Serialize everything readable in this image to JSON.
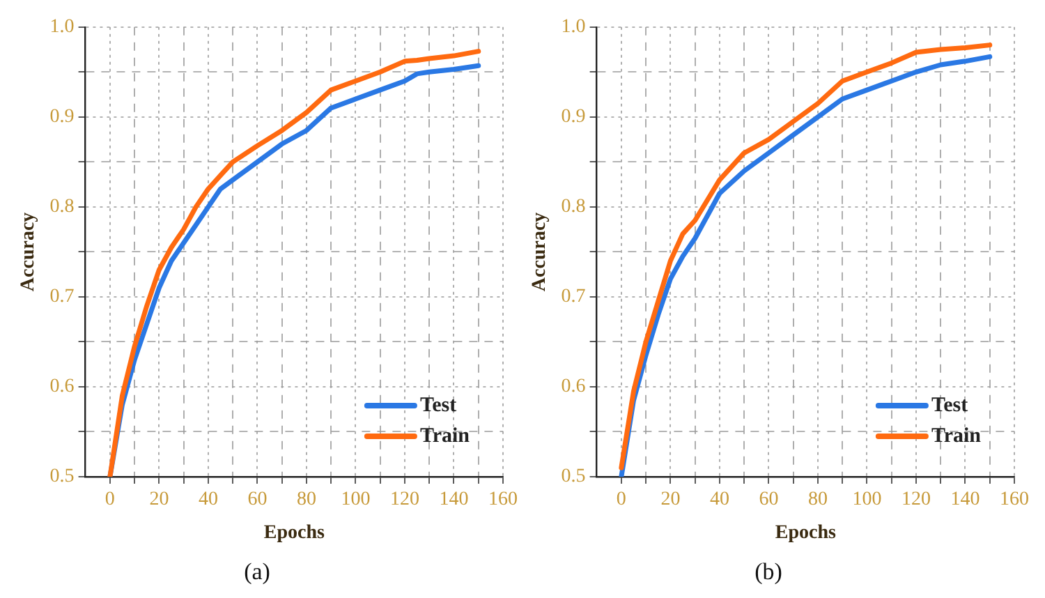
{
  "chart_data": [
    {
      "type": "line",
      "title": "(a)",
      "xlabel": "Epochs",
      "ylabel": "Accuracy",
      "legend": "bottom right",
      "grid": true,
      "marker": "none",
      "line_style": "solid",
      "xlim": [
        -10,
        160
      ],
      "xticks": [
        0,
        {
          "value": 10,
          "label": null
        },
        20,
        {
          "value": 30,
          "label": null
        },
        40,
        {
          "value": 50,
          "label": null
        },
        60,
        {
          "value": 70,
          "label": null
        },
        80,
        {
          "value": 90,
          "label": null
        },
        100,
        {
          "value": 110,
          "label": null
        },
        120,
        {
          "value": 130,
          "label": null
        },
        140,
        {
          "value": 150,
          "label": null
        },
        160
      ],
      "ylim": [
        0.5,
        1.0
      ],
      "yticks": [
        0.5,
        {
          "value": 0.55,
          "label": null
        },
        0.6,
        {
          "value": 0.65,
          "label": null
        },
        0.7,
        {
          "value": 0.75,
          "label": null
        },
        0.8,
        {
          "value": 0.85,
          "label": null
        },
        0.9,
        {
          "value": 0.95,
          "label": null
        },
        {
          "value": 1.0,
          "label": "1.0"
        }
      ],
      "x": [
        0,
        5,
        10,
        15,
        20,
        25,
        30,
        35,
        40,
        45,
        50,
        60,
        70,
        80,
        90,
        100,
        110,
        120,
        125,
        130,
        140,
        150
      ],
      "series": [
        {
          "name": "Test",
          "color": "#2a78e4",
          "values": [
            0.5,
            0.58,
            0.63,
            0.67,
            0.71,
            0.74,
            0.76,
            0.78,
            0.8,
            0.82,
            0.83,
            0.85,
            0.87,
            0.885,
            0.91,
            0.92,
            0.93,
            0.94,
            0.948,
            0.95,
            0.953,
            0.957
          ]
        },
        {
          "name": "Train",
          "color": "#ff6a10",
          "values": [
            0.5,
            0.59,
            0.645,
            0.69,
            0.73,
            0.755,
            0.775,
            0.8,
            0.82,
            0.835,
            0.85,
            0.868,
            0.885,
            0.905,
            0.93,
            0.94,
            0.95,
            0.962,
            0.963,
            0.965,
            0.968,
            0.973
          ]
        }
      ]
    },
    {
      "type": "line",
      "title": "(b)",
      "xlabel": "Epochs",
      "ylabel": "Accuracy",
      "legend": "bottom right",
      "grid": true,
      "marker": "none",
      "line_style": "solid",
      "xlim": [
        -10,
        160
      ],
      "xticks": [
        0,
        {
          "value": 10,
          "label": null
        },
        20,
        {
          "value": 30,
          "label": null
        },
        40,
        {
          "value": 50,
          "label": null
        },
        60,
        {
          "value": 70,
          "label": null
        },
        80,
        {
          "value": 90,
          "label": null
        },
        100,
        {
          "value": 110,
          "label": null
        },
        120,
        {
          "value": 130,
          "label": null
        },
        140,
        {
          "value": 150,
          "label": null
        },
        160
      ],
      "ylim": [
        0.5,
        1.0
      ],
      "yticks": [
        0.5,
        {
          "value": 0.55,
          "label": null
        },
        0.6,
        {
          "value": 0.65,
          "label": null
        },
        0.7,
        {
          "value": 0.75,
          "label": null
        },
        0.8,
        {
          "value": 0.85,
          "label": null
        },
        0.9,
        {
          "value": 0.95,
          "label": null
        },
        {
          "value": 1.0,
          "label": "1.0"
        }
      ],
      "x": [
        0,
        5,
        10,
        15,
        20,
        25,
        30,
        40,
        50,
        60,
        70,
        80,
        90,
        100,
        110,
        120,
        130,
        140,
        150
      ],
      "series": [
        {
          "name": "Test",
          "color": "#2a78e4",
          "values": [
            0.5,
            0.585,
            0.635,
            0.68,
            0.72,
            0.745,
            0.765,
            0.815,
            0.84,
            0.86,
            0.88,
            0.9,
            0.92,
            0.93,
            0.94,
            0.95,
            0.958,
            0.962,
            0.967
          ]
        },
        {
          "name": "Train",
          "color": "#ff6a10",
          "values": [
            0.51,
            0.595,
            0.65,
            0.695,
            0.74,
            0.77,
            0.785,
            0.83,
            0.86,
            0.875,
            0.895,
            0.915,
            0.94,
            0.95,
            0.96,
            0.972,
            0.975,
            0.977,
            0.98
          ]
        }
      ]
    }
  ]
}
